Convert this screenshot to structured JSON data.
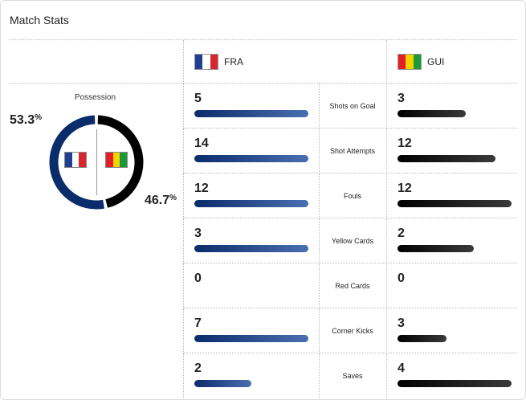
{
  "header": {
    "title": "Match Stats"
  },
  "teams": {
    "home": {
      "abbr": "FRA",
      "flag_colors": [
        "#1f3f8f",
        "#ffffff",
        "#d8262e"
      ],
      "bar_color": "#0b2c6b"
    },
    "away": {
      "abbr": "GUI",
      "flag_colors": [
        "#e01f27",
        "#f6d200",
        "#1b9a3a"
      ],
      "bar_color": "#111111"
    }
  },
  "possession": {
    "label": "Possession",
    "home_pct": "53.3",
    "away_pct": "46.7",
    "pct_sign": "%",
    "home_fraction": 0.533,
    "away_fraction": 0.467
  },
  "stats": [
    {
      "label": "Shots on Goal",
      "home": "5",
      "away": "3",
      "home_fill": 1.0,
      "away_fill": 0.6
    },
    {
      "label": "Shot Attempts",
      "home": "14",
      "away": "12",
      "home_fill": 1.0,
      "away_fill": 0.857
    },
    {
      "label": "Fouls",
      "home": "12",
      "away": "12",
      "home_fill": 1.0,
      "away_fill": 1.0
    },
    {
      "label": "Yellow Cards",
      "home": "3",
      "away": "2",
      "home_fill": 1.0,
      "away_fill": 0.667
    },
    {
      "label": "Red Cards",
      "home": "0",
      "away": "0",
      "home_fill": 0,
      "away_fill": 0
    },
    {
      "label": "Corner Kicks",
      "home": "7",
      "away": "3",
      "home_fill": 1.0,
      "away_fill": 0.429
    },
    {
      "label": "Saves",
      "home": "2",
      "away": "4",
      "home_fill": 0.5,
      "away_fill": 1.0
    }
  ]
}
